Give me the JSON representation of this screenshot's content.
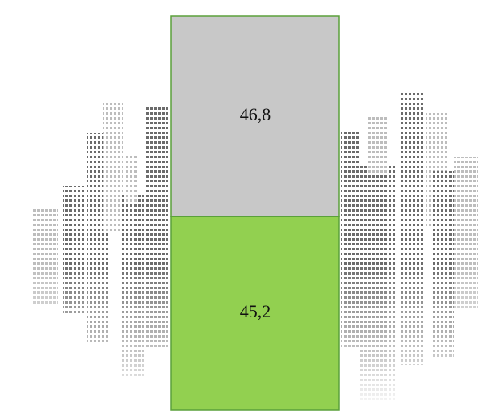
{
  "chart_data": {
    "type": "bar",
    "stacked": true,
    "categories": [
      null
    ],
    "series": [
      {
        "color": "#92d050",
        "values": [
          45.2
        ],
        "value_labels": [
          "45,2"
        ]
      },
      {
        "color": "#c8c8c8",
        "values": [
          46.8
        ],
        "value_labels": [
          "46,8"
        ]
      }
    ]
  }
}
